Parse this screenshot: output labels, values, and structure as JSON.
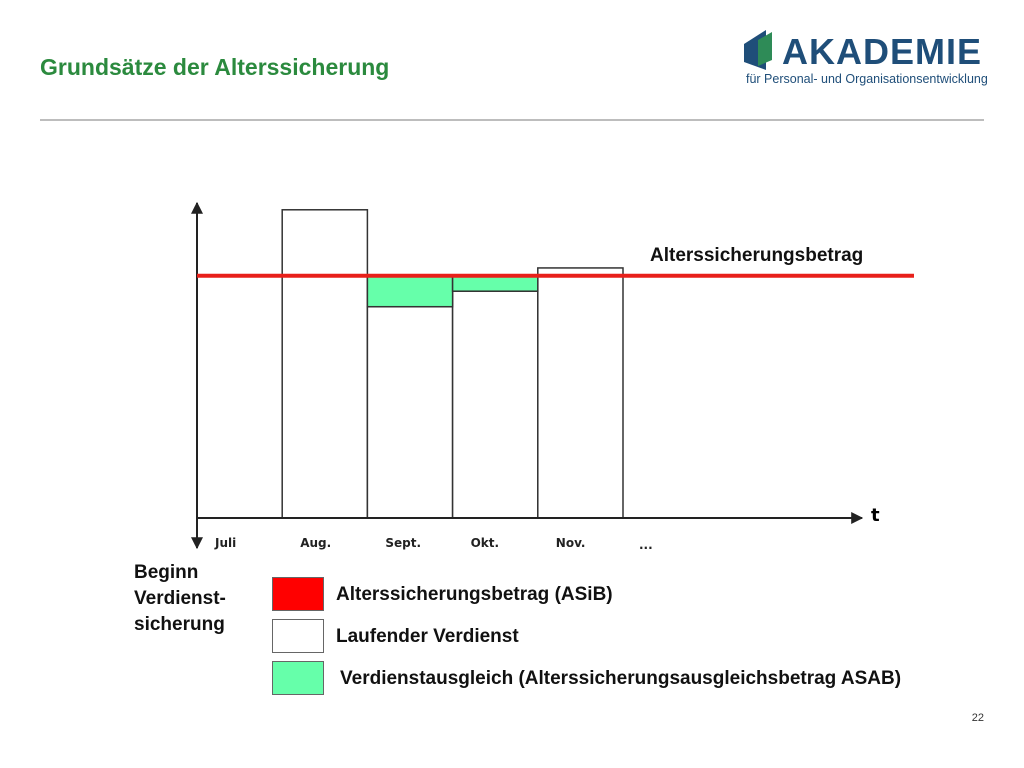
{
  "slide": {
    "title": "Grundsätze der Alterssicherung",
    "page_number": "22"
  },
  "logo": {
    "name": "AKADEMIE",
    "subtitle": "für Personal- und Organisationsentwicklung",
    "icon": "akademie-logo-mark",
    "colors": {
      "dark_blue": "#1f4e79",
      "green": "#2e8b57"
    }
  },
  "chart_data": {
    "type": "bar",
    "categories": [
      "Juli",
      "Aug.",
      "Sept.",
      "Okt.",
      "Nov."
    ],
    "trailing_tick": "...",
    "x_axis_label": "t",
    "values": [
      0,
      6.8,
      -3.2,
      -1.6,
      0.8
    ],
    "reference_line": {
      "label": "Alterssicherungsbetrag",
      "value": 0,
      "color": "#e8201a"
    },
    "compensation": [
      0,
      0,
      3.2,
      1.6,
      0
    ],
    "ylim": [
      -25,
      7.5
    ],
    "colors": {
      "earnings_fill": "#ffffff",
      "compensation_fill": "#66ffaa",
      "reference": "#e8201a"
    }
  },
  "start_label": [
    "Beginn",
    "Verdienst-",
    "sicherung"
  ],
  "legend": [
    {
      "label": "Alterssicherungsbetrag (ASiB)",
      "color": "#ff0000"
    },
    {
      "label": "Laufender Verdienst",
      "color": "#ffffff"
    },
    {
      "label": "Verdienstausgleich (Alterssicherungsausgleichsbetrag ASAB)",
      "color": "#66ffaa"
    }
  ]
}
